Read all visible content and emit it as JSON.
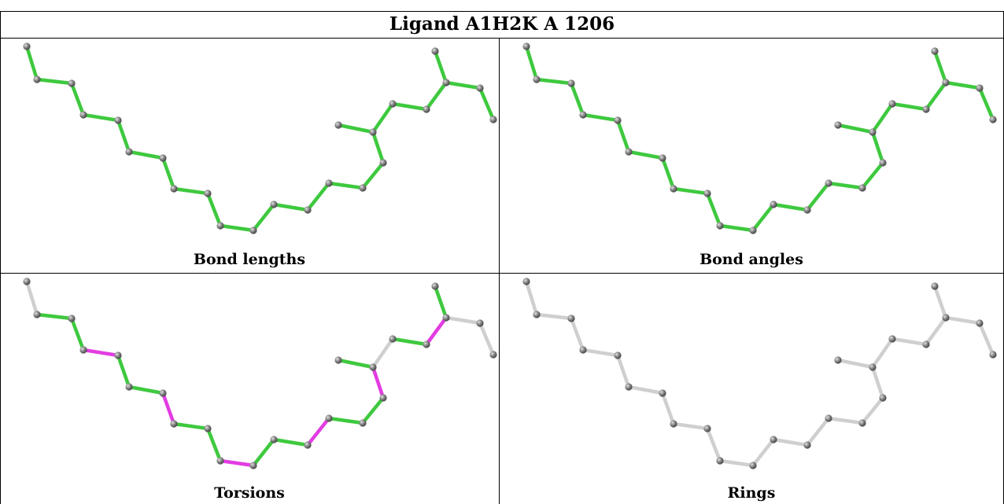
{
  "title": "Ligand A1H2K A 1206",
  "colors": {
    "ok_bond": "#3ec93e",
    "outlier_bond": "#e23ce2",
    "neutral_bond": "#cfcfcf",
    "atom": "#7a7a7a"
  },
  "panels": [
    {
      "caption": "Bond lengths",
      "mode": "green"
    },
    {
      "caption": "Bond angles",
      "mode": "green"
    },
    {
      "caption": "Torsions",
      "mode": "torsion"
    },
    {
      "caption": "Rings",
      "mode": "grey"
    }
  ],
  "torsion_outlier_bonds": [
    1,
    4,
    7,
    10,
    13,
    16,
    20,
    23
  ]
}
